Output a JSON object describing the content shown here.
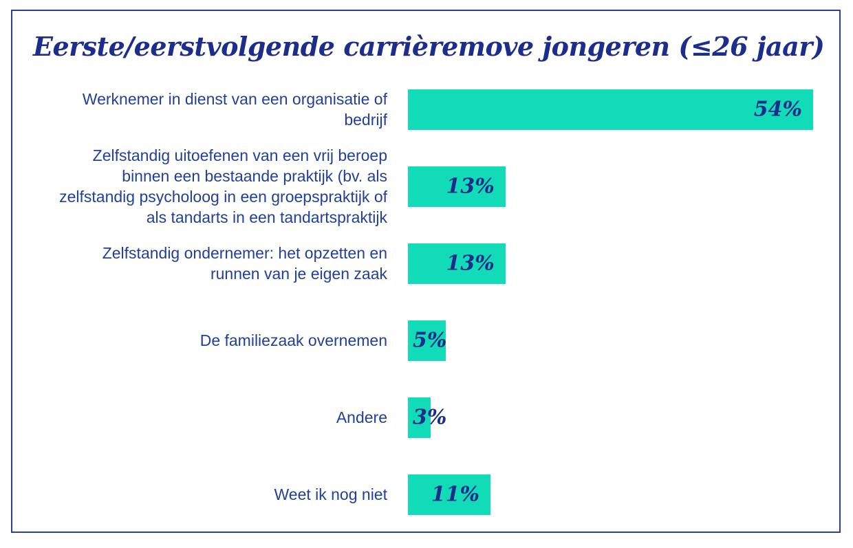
{
  "chart_data": {
    "type": "bar",
    "orientation": "horizontal",
    "title": "Eerste/eerstvolgende carrièremove jongeren (≤26 jaar)",
    "categories": [
      "Werknemer in dienst van een organisatie of bedrijf",
      "Zelfstandig uitoefenen van een vrij beroep binnen een bestaande praktijk (bv. als zelfstandig psycholoog in een groepspraktijk of als tandarts in een tandartspraktijk",
      "Zelfstandig ondernemer: het opzetten en runnen van je eigen zaak",
      "De familiezaak overnemen",
      "Andere",
      "Weet ik nog niet"
    ],
    "values": [
      54,
      13,
      13,
      5,
      3,
      11
    ],
    "value_labels": [
      "54%",
      "13%",
      "13%",
      "5%",
      "3%",
      "11%"
    ],
    "xlabel": "",
    "ylabel": "",
    "xlim": [
      0,
      54
    ],
    "grid": false,
    "legend": false,
    "colors": {
      "bar": "#12dcb7",
      "category_label": "#21409a",
      "value_label": "#1c2d8c",
      "title": "#1c2d8c",
      "frame_border": "#2b3f97",
      "background": "#ffffff"
    }
  }
}
